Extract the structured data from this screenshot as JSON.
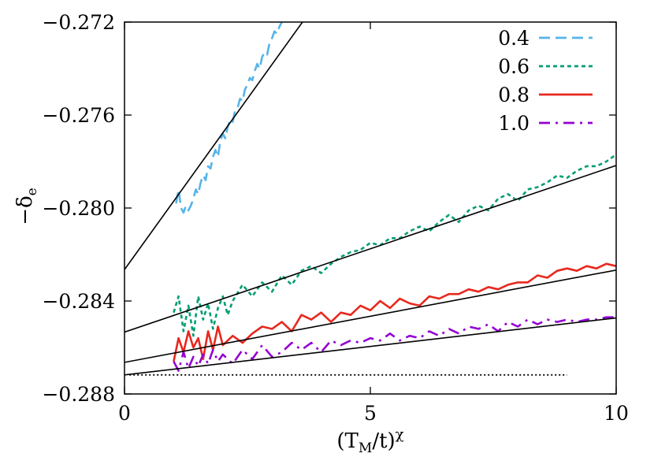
{
  "chart_data": {
    "type": "line",
    "title": "",
    "xlabel": "(T_M/t)^χ",
    "ylabel": "−δ_e",
    "xlim": [
      0,
      10
    ],
    "ylim": [
      -0.288,
      -0.272
    ],
    "grid": false,
    "legend_position": "top-right",
    "x_ticks": [
      {
        "value": 0,
        "label": "0"
      },
      {
        "value": 5,
        "label": "5"
      },
      {
        "value": 10,
        "label": "10"
      }
    ],
    "y_ticks": [
      {
        "value": -0.272,
        "label": "−0.272"
      },
      {
        "value": -0.276,
        "label": "−0.276"
      },
      {
        "value": -0.28,
        "label": "−0.280"
      },
      {
        "value": -0.284,
        "label": "−0.284"
      },
      {
        "value": -0.288,
        "label": "−0.288"
      }
    ],
    "series": [
      {
        "name": "0.4",
        "color": "#56b4e9",
        "dash": "long-dash",
        "x": [
          1.05,
          1.1,
          1.15,
          1.2,
          1.25,
          1.3,
          1.35,
          1.4,
          1.45,
          1.5,
          1.55,
          1.6,
          1.65,
          1.7,
          1.75,
          1.8,
          1.85,
          1.9,
          1.95,
          2.0,
          2.05,
          2.1,
          2.15,
          2.2,
          2.25,
          2.3,
          2.35,
          2.4,
          2.45,
          2.5,
          2.55,
          2.6,
          2.65,
          2.7,
          2.75,
          2.8,
          2.85,
          2.9,
          2.95,
          3.0,
          3.05,
          3.1,
          3.15,
          3.2,
          3.25
        ],
        "y": [
          -0.2798,
          -0.2792,
          -0.28,
          -0.2802,
          -0.2799,
          -0.2801,
          -0.2799,
          -0.2796,
          -0.2792,
          -0.2794,
          -0.2789,
          -0.2786,
          -0.2788,
          -0.2782,
          -0.2783,
          -0.2778,
          -0.2775,
          -0.2778,
          -0.2771,
          -0.2768,
          -0.277,
          -0.2765,
          -0.2762,
          -0.2763,
          -0.2758,
          -0.2757,
          -0.2753,
          -0.2754,
          -0.2749,
          -0.2747,
          -0.2744,
          -0.2745,
          -0.2741,
          -0.2738,
          -0.274,
          -0.2735,
          -0.2733,
          -0.2734,
          -0.2729,
          -0.2727,
          -0.2724,
          -0.2725,
          -0.2722,
          -0.272,
          -0.2719
        ]
      },
      {
        "name": "0.6",
        "color": "#009e73",
        "dash": "short-dash",
        "x": [
          1.0,
          1.1,
          1.2,
          1.3,
          1.4,
          1.5,
          1.6,
          1.7,
          1.8,
          1.9,
          2.0,
          2.1,
          2.2,
          2.4,
          2.6,
          2.8,
          3.0,
          3.2,
          3.4,
          3.6,
          3.8,
          4.0,
          4.2,
          4.4,
          4.6,
          4.8,
          5.0,
          5.2,
          5.4,
          5.6,
          5.8,
          6.0,
          6.2,
          6.4,
          6.6,
          6.8,
          7.0,
          7.2,
          7.4,
          7.6,
          7.8,
          8.0,
          8.2,
          8.4,
          8.6,
          8.8,
          9.0,
          9.2,
          9.4,
          9.6,
          9.8,
          10.0
        ],
        "y": [
          -0.2845,
          -0.2838,
          -0.2853,
          -0.2842,
          -0.2855,
          -0.2838,
          -0.2848,
          -0.2841,
          -0.2852,
          -0.2843,
          -0.2838,
          -0.2846,
          -0.284,
          -0.2833,
          -0.2838,
          -0.2832,
          -0.2836,
          -0.2829,
          -0.2833,
          -0.2827,
          -0.2825,
          -0.2828,
          -0.2824,
          -0.2821,
          -0.2819,
          -0.2818,
          -0.2815,
          -0.2816,
          -0.2813,
          -0.2813,
          -0.281,
          -0.2808,
          -0.281,
          -0.2806,
          -0.2803,
          -0.2806,
          -0.2801,
          -0.2799,
          -0.2801,
          -0.2796,
          -0.2794,
          -0.2797,
          -0.2792,
          -0.2791,
          -0.2789,
          -0.2786,
          -0.2787,
          -0.2784,
          -0.2782,
          -0.2782,
          -0.278,
          -0.2777
        ]
      },
      {
        "name": "0.8",
        "color": "#e8281e",
        "dash": "solid",
        "x": [
          1.0,
          1.1,
          1.2,
          1.3,
          1.4,
          1.5,
          1.6,
          1.7,
          1.8,
          1.9,
          2.0,
          2.2,
          2.4,
          2.6,
          2.8,
          3.0,
          3.2,
          3.4,
          3.6,
          3.8,
          4.0,
          4.2,
          4.4,
          4.6,
          4.8,
          5.0,
          5.2,
          5.4,
          5.6,
          5.8,
          6.0,
          6.2,
          6.4,
          6.6,
          6.8,
          7.0,
          7.2,
          7.4,
          7.6,
          7.8,
          8.0,
          8.2,
          8.4,
          8.6,
          8.8,
          9.0,
          9.2,
          9.4,
          9.6,
          9.8,
          10.0
        ],
        "y": [
          -0.2866,
          -0.2856,
          -0.2862,
          -0.2853,
          -0.286,
          -0.2856,
          -0.2865,
          -0.2853,
          -0.2861,
          -0.2851,
          -0.2859,
          -0.2855,
          -0.2858,
          -0.2854,
          -0.2851,
          -0.2852,
          -0.2849,
          -0.2853,
          -0.2846,
          -0.2848,
          -0.2845,
          -0.2849,
          -0.2845,
          -0.2846,
          -0.2842,
          -0.2844,
          -0.284,
          -0.2843,
          -0.2839,
          -0.2841,
          -0.2842,
          -0.2838,
          -0.2839,
          -0.2837,
          -0.2837,
          -0.2835,
          -0.2836,
          -0.2834,
          -0.2835,
          -0.2833,
          -0.2832,
          -0.2832,
          -0.2829,
          -0.283,
          -0.2827,
          -0.2826,
          -0.2827,
          -0.2825,
          -0.2826,
          -0.2824,
          -0.2825
        ]
      },
      {
        "name": "1.0",
        "color": "#9400d3",
        "dash": "dash-dot",
        "x": [
          1.0,
          1.1,
          1.2,
          1.3,
          1.4,
          1.5,
          1.6,
          1.7,
          1.8,
          1.9,
          2.0,
          2.2,
          2.4,
          2.6,
          2.8,
          3.0,
          3.2,
          3.4,
          3.6,
          3.8,
          4.0,
          4.2,
          4.4,
          4.6,
          4.8,
          5.0,
          5.2,
          5.4,
          5.6,
          5.8,
          6.0,
          6.2,
          6.4,
          6.6,
          6.8,
          7.0,
          7.2,
          7.4,
          7.6,
          7.8,
          8.0,
          8.2,
          8.4,
          8.6,
          8.8,
          9.0,
          9.2,
          9.4,
          9.6,
          9.8,
          10.0
        ],
        "y": [
          -0.2866,
          -0.287,
          -0.2862,
          -0.2869,
          -0.2864,
          -0.2868,
          -0.2863,
          -0.2867,
          -0.2861,
          -0.2866,
          -0.2863,
          -0.2867,
          -0.2861,
          -0.2865,
          -0.2859,
          -0.2864,
          -0.2862,
          -0.2858,
          -0.2861,
          -0.2858,
          -0.2862,
          -0.2857,
          -0.2859,
          -0.2857,
          -0.2858,
          -0.2856,
          -0.2857,
          -0.2854,
          -0.2857,
          -0.2855,
          -0.2856,
          -0.2853,
          -0.2855,
          -0.2852,
          -0.2854,
          -0.2851,
          -0.2852,
          -0.285,
          -0.2853,
          -0.2849,
          -0.2851,
          -0.2848,
          -0.285,
          -0.2848,
          -0.2849,
          -0.2848,
          -0.2849,
          -0.2848,
          -0.2848,
          -0.2847,
          -0.2847
        ]
      }
    ],
    "fit_lines": [
      {
        "color": "#000000",
        "x": [
          0,
          3.62
        ],
        "y": [
          -0.28265,
          -0.272
        ]
      },
      {
        "color": "#000000",
        "x": [
          0,
          10
        ],
        "y": [
          -0.28534,
          -0.27817
        ]
      },
      {
        "color": "#000000",
        "x": [
          0,
          10
        ],
        "y": [
          -0.28664,
          -0.28267
        ]
      },
      {
        "color": "#000000",
        "x": [
          0,
          10
        ],
        "y": [
          -0.28718,
          -0.28473
        ]
      }
    ],
    "reference_line": {
      "style": "dotted",
      "color": "#000000",
      "x": [
        0.1,
        9.0
      ],
      "y": [
        -0.28718,
        -0.28718
      ]
    }
  }
}
